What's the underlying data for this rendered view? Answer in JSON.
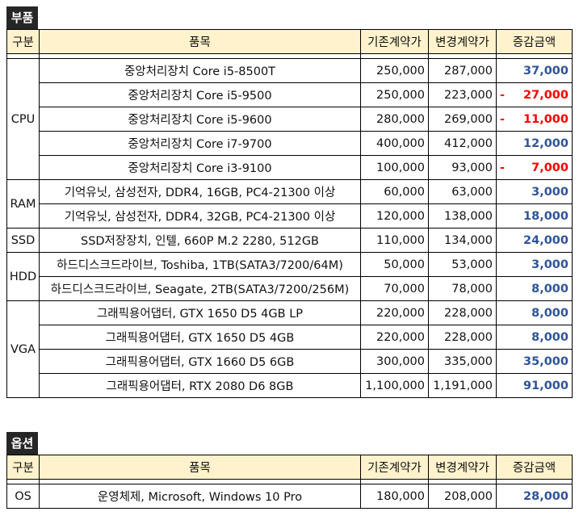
{
  "colors": {
    "header_fill": "#fff2cc",
    "positive": "#305496",
    "negative": "#ff0000",
    "tag_fill": "#262626"
  },
  "parts": {
    "tag": "부품",
    "headers": {
      "category": "구분",
      "item": "품목",
      "old_price": "기존계약가",
      "new_price": "변경계약가",
      "diff": "증감금액"
    },
    "groups": [
      {
        "category": "CPU",
        "rows": [
          {
            "item": "중앙처리장치 Core i5-8500T",
            "old_price": "250,000",
            "new_price": "287,000",
            "sign": "",
            "diff": "37,000"
          },
          {
            "item": "중앙처리장치 Core i5-9500",
            "old_price": "250,000",
            "new_price": "223,000",
            "sign": "-",
            "diff": "27,000"
          },
          {
            "item": "중앙처리장치 Core i5-9600",
            "old_price": "280,000",
            "new_price": "269,000",
            "sign": "-",
            "diff": "11,000"
          },
          {
            "item": "중앙처리장치 Core i7-9700",
            "old_price": "400,000",
            "new_price": "412,000",
            "sign": "",
            "diff": "12,000"
          },
          {
            "item": "중앙처리장치 Core i3-9100",
            "old_price": "100,000",
            "new_price": "93,000",
            "sign": "-",
            "diff": "7,000"
          }
        ]
      },
      {
        "category": "RAM",
        "rows": [
          {
            "item": "기억유닛, 삼성전자, DDR4, 16GB, PC4-21300 이상",
            "old_price": "60,000",
            "new_price": "63,000",
            "sign": "",
            "diff": "3,000"
          },
          {
            "item": "기억유닛, 삼성전자, DDR4, 32GB, PC4-21300 이상",
            "old_price": "120,000",
            "new_price": "138,000",
            "sign": "",
            "diff": "18,000"
          }
        ]
      },
      {
        "category": "SSD",
        "rows": [
          {
            "item": "SSD저장장치, 인텔, 660P M.2 2280, 512GB",
            "old_price": "110,000",
            "new_price": "134,000",
            "sign": "",
            "diff": "24,000"
          }
        ]
      },
      {
        "category": "HDD",
        "rows": [
          {
            "item": "하드디스크드라이브, Toshiba, 1TB(SATA3/7200/64M)",
            "old_price": "50,000",
            "new_price": "53,000",
            "sign": "",
            "diff": "3,000"
          },
          {
            "item": "하드디스크드라이브, Seagate, 2TB(SATA3/7200/256M)",
            "old_price": "70,000",
            "new_price": "78,000",
            "sign": "",
            "diff": "8,000"
          }
        ]
      },
      {
        "category": "VGA",
        "rows": [
          {
            "item": "그래픽용어댑터, GTX 1650 D5 4GB LP",
            "old_price": "220,000",
            "new_price": "228,000",
            "sign": "",
            "diff": "8,000"
          },
          {
            "item": "그래픽용어댑터, GTX 1650 D5 4GB",
            "old_price": "220,000",
            "new_price": "228,000",
            "sign": "",
            "diff": "8,000"
          },
          {
            "item": "그래픽용어댑터, GTX 1660 D5 6GB",
            "old_price": "300,000",
            "new_price": "335,000",
            "sign": "",
            "diff": "35,000"
          },
          {
            "item": "그래픽용어댑터, RTX 2080 D6 8GB",
            "old_price": "1,100,000",
            "new_price": "1,191,000",
            "sign": "",
            "diff": "91,000"
          }
        ]
      }
    ]
  },
  "options": {
    "tag": "옵션",
    "headers": {
      "category": "구분",
      "item": "품목",
      "old_price": "기존계약가",
      "new_price": "변경계약가",
      "diff": "증감금액"
    },
    "groups": [
      {
        "category": "OS",
        "rows": [
          {
            "item": "운영체제, Microsoft, Windows 10 Pro",
            "old_price": "180,000",
            "new_price": "208,000",
            "sign": "",
            "diff": "28,000"
          }
        ]
      }
    ]
  }
}
